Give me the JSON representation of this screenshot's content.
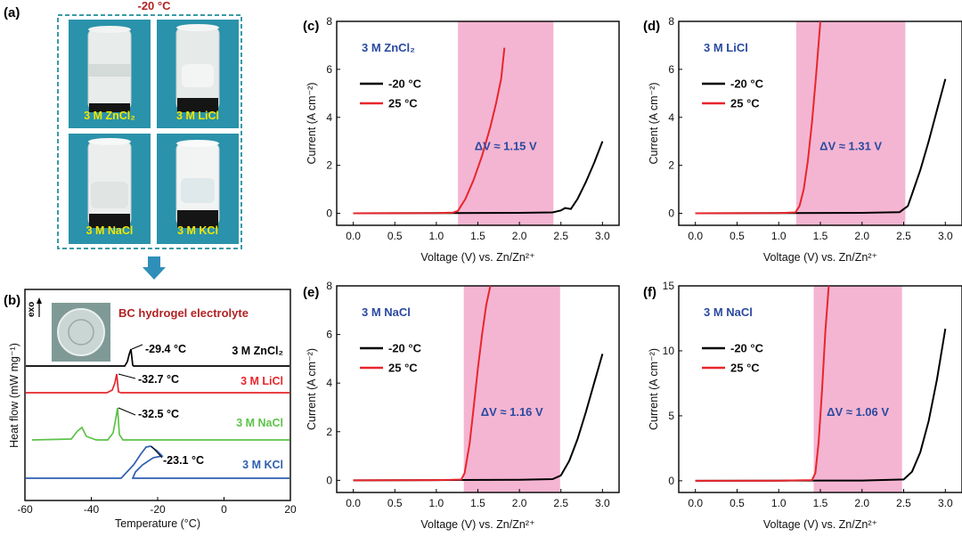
{
  "colors": {
    "cold": "#000000",
    "warm": "#e8262c",
    "shade": "#f4b5d2",
    "note": "#2a4aa0",
    "dashed": "#3a9aa6",
    "arrow": "#2f8fb8",
    "title_red": "#b22222"
  },
  "panel_a": {
    "label": "(a)",
    "temperature": "-20 °C",
    "photos": [
      "3 M ZnCl₂",
      "3 M LiCl",
      "3 M NaCl",
      "3 M KCl"
    ]
  },
  "panel_b": {
    "label": "(b)",
    "inset_title": "BC hydrogel electrolyte",
    "exo_label": "exo",
    "curve_colors": [
      "#000000",
      "#e8262c",
      "#5cc24a",
      "#2f5fb0"
    ]
  },
  "chart_data": [
    {
      "id": "b",
      "type": "line",
      "xlabel": "Temperature (°C)",
      "ylabel": "Heat flow (mW mg⁻¹)",
      "xlim": [
        -60,
        20
      ],
      "xticks": [
        -60,
        -40,
        -20,
        0,
        20
      ],
      "series": [
        {
          "name": "3 M ZnCl₂",
          "peak": "-29.4 °C"
        },
        {
          "name": "3 M LiCl",
          "peak": "-32.7 °C"
        },
        {
          "name": "3 M NaCl",
          "peak": "-32.5 °C"
        },
        {
          "name": "3 M KCl",
          "peak": "-23.1 °C"
        }
      ]
    },
    {
      "id": "c",
      "label": "(c)",
      "type": "line",
      "electrolyte": "3 M ZnCl₂",
      "xlabel": "Voltage (V) vs. Zn/Zn²⁺",
      "ylabel": "Current (A cm⁻²)",
      "xlim": [
        -0.2,
        3.2
      ],
      "ylim": [
        -0.5,
        8
      ],
      "xticks": [
        "0.0",
        "0.5",
        "1.0",
        "1.5",
        "2.0",
        "2.5",
        "3.0"
      ],
      "yticks": [
        "0",
        "2",
        "4",
        "6",
        "8"
      ],
      "shade": [
        1.26,
        2.41
      ],
      "delta_v": "ΔV ≈ 1.15 V",
      "series": [
        {
          "name": "-20 °C",
          "x": [
            0,
            1.0,
            2.0,
            2.4,
            2.5,
            2.55,
            2.62,
            2.7,
            2.8,
            2.9,
            3.0
          ],
          "y": [
            0,
            0.01,
            0.02,
            0.04,
            0.12,
            0.22,
            0.18,
            0.6,
            1.3,
            2.1,
            3.0
          ]
        },
        {
          "name": "25 °C",
          "x": [
            0,
            1.0,
            1.2,
            1.26,
            1.35,
            1.45,
            1.55,
            1.65,
            1.72,
            1.78,
            1.82
          ],
          "y": [
            0,
            0.01,
            0.03,
            0.1,
            0.6,
            1.4,
            2.4,
            3.6,
            4.6,
            5.6,
            6.9
          ]
        }
      ]
    },
    {
      "id": "d",
      "label": "(d)",
      "type": "line",
      "electrolyte": "3 M LiCl",
      "xlabel": "Voltage (V) vs. Zn/Zn²⁺",
      "ylabel": "Current (A cm⁻²)",
      "xlim": [
        -0.2,
        3.2
      ],
      "ylim": [
        -0.5,
        8
      ],
      "xticks": [
        "0.0",
        "0.5",
        "1.0",
        "1.5",
        "2.0",
        "2.5",
        "3.0"
      ],
      "yticks": [
        "0",
        "2",
        "4",
        "6",
        "8"
      ],
      "shade": [
        1.21,
        2.52
      ],
      "delta_v": "ΔV ≈ 1.31 V",
      "series": [
        {
          "name": "-20 °C",
          "x": [
            0,
            1.0,
            2.0,
            2.45,
            2.55,
            2.6,
            2.7,
            2.8,
            2.9,
            3.0
          ],
          "y": [
            0,
            0.01,
            0.02,
            0.05,
            0.3,
            0.8,
            1.8,
            3.0,
            4.3,
            5.6
          ]
        },
        {
          "name": "25 °C",
          "x": [
            0,
            1.0,
            1.2,
            1.25,
            1.3,
            1.35,
            1.4,
            1.45,
            1.5
          ],
          "y": [
            0,
            0.01,
            0.04,
            0.3,
            1.0,
            2.2,
            3.8,
            5.8,
            8.0
          ]
        }
      ]
    },
    {
      "id": "e",
      "label": "(e)",
      "type": "line",
      "electrolyte": "3 M NaCl",
      "xlabel": "Voltage (V) vs. Zn/Zn²⁺",
      "ylabel": "Current (A cm⁻²)",
      "xlim": [
        -0.2,
        3.2
      ],
      "ylim": [
        -0.5,
        8
      ],
      "xticks": [
        "0.0",
        "0.5",
        "1.0",
        "1.5",
        "2.0",
        "2.5",
        "3.0"
      ],
      "yticks": [
        "0",
        "2",
        "4",
        "6",
        "8"
      ],
      "shade": [
        1.33,
        2.49
      ],
      "delta_v": "ΔV ≈ 1.16 V",
      "series": [
        {
          "name": "-20 °C",
          "x": [
            0,
            1.0,
            2.0,
            2.4,
            2.5,
            2.6,
            2.7,
            2.8,
            2.9,
            3.0
          ],
          "y": [
            0,
            0.01,
            0.02,
            0.05,
            0.2,
            0.8,
            1.7,
            2.8,
            4.0,
            5.2
          ]
        },
        {
          "name": "25 °C",
          "x": [
            0,
            1.0,
            1.3,
            1.34,
            1.4,
            1.45,
            1.5,
            1.55,
            1.6,
            1.65
          ],
          "y": [
            0,
            0.01,
            0.03,
            0.3,
            1.5,
            3.0,
            4.6,
            6.0,
            7.2,
            8.0
          ]
        }
      ]
    },
    {
      "id": "f",
      "label": "(f)",
      "type": "line",
      "electrolyte": "3 M NaCl",
      "xlabel": "Voltage (V) vs. Zn/Zn²⁺",
      "ylabel": "Current (A cm⁻²)",
      "xlim": [
        -0.2,
        3.2
      ],
      "ylim": [
        -0.9,
        15
      ],
      "xticks": [
        "0.0",
        "0.5",
        "1.0",
        "1.5",
        "2.0",
        "2.5",
        "3.0"
      ],
      "yticks": [
        "0",
        "5",
        "10",
        "15"
      ],
      "shade": [
        1.42,
        2.48
      ],
      "delta_v": "ΔV ≈ 1.06 V",
      "series": [
        {
          "name": "-20 °C",
          "x": [
            0,
            1.0,
            2.0,
            2.5,
            2.6,
            2.7,
            2.8,
            2.9,
            3.0
          ],
          "y": [
            0,
            0.01,
            0.02,
            0.1,
            0.7,
            2.2,
            4.6,
            7.8,
            11.7
          ]
        },
        {
          "name": "25 °C",
          "x": [
            0,
            1.0,
            1.4,
            1.44,
            1.48,
            1.52,
            1.56,
            1.6
          ],
          "y": [
            0,
            0.01,
            0.05,
            0.6,
            3.0,
            7.0,
            11.5,
            15.0
          ]
        }
      ]
    }
  ]
}
